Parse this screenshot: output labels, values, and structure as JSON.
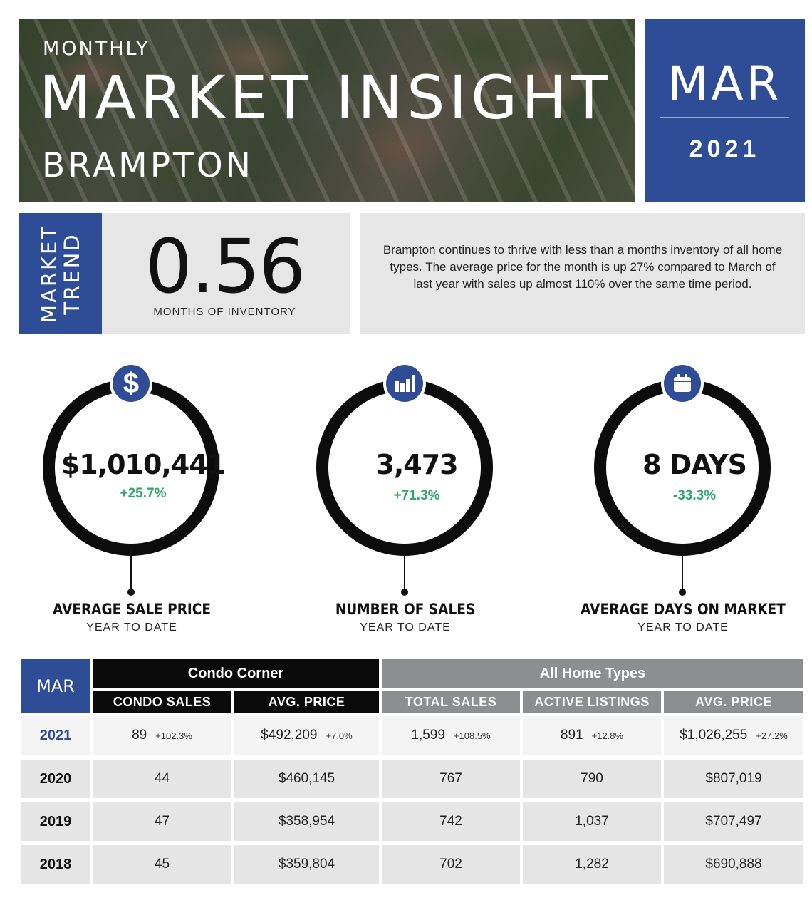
{
  "header": {
    "monthly": "MONTHLY",
    "title": "MARKET INSIGHT",
    "city": "BRAMPTON",
    "month": "MAR",
    "year": "2021"
  },
  "trend": {
    "tag_line1": "MARKET",
    "tag_line2": "TREND",
    "value": "0.56",
    "label": "MONTHS OF INVENTORY",
    "description": "Brampton continues to thrive with less than a months inventory of all home types.  The average price for the month is up 27% compared to March of last year with sales up almost 110% over the same time period."
  },
  "metrics": [
    {
      "icon": "dollar-icon",
      "value": "$1,010,441",
      "change": "+25.7%",
      "label": "AVERAGE SALE PRICE",
      "sub": "YEAR TO DATE"
    },
    {
      "icon": "bar-chart-icon",
      "value": "3,473",
      "change": "+71.3%",
      "label": "NUMBER OF SALES",
      "sub": "YEAR TO DATE"
    },
    {
      "icon": "calendar-icon",
      "value": "8 DAYS",
      "change": "-33.3%",
      "label": "AVERAGE DAYS ON MARKET",
      "sub": "YEAR TO DATE"
    }
  ],
  "colors": {
    "brand_blue": "#2f4d97",
    "positive_green": "#2ea868",
    "header_gray": "#8c8e8f"
  },
  "table": {
    "corner": "MAR",
    "group_condo": "Condo Corner",
    "group_all": "All Home Types",
    "headers": [
      "CONDO SALES",
      "AVG. PRICE",
      "TOTAL SALES",
      "ACTIVE LISTINGS",
      "AVG. PRICE"
    ],
    "rows": [
      {
        "year": "2021",
        "cells": [
          {
            "v": "89",
            "p": "+102.3%"
          },
          {
            "v": "$492,209",
            "p": "+7.0%"
          },
          {
            "v": "1,599",
            "p": "+108.5%"
          },
          {
            "v": "891",
            "p": "+12.8%"
          },
          {
            "v": "$1,026,255",
            "p": "+27.2%"
          }
        ]
      },
      {
        "year": "2020",
        "cells": [
          {
            "v": "44"
          },
          {
            "v": "$460,145"
          },
          {
            "v": "767"
          },
          {
            "v": "790"
          },
          {
            "v": "$807,019"
          }
        ]
      },
      {
        "year": "2019",
        "cells": [
          {
            "v": "47"
          },
          {
            "v": "$358,954"
          },
          {
            "v": "742"
          },
          {
            "v": "1,037"
          },
          {
            "v": "$707,497"
          }
        ]
      },
      {
        "year": "2018",
        "cells": [
          {
            "v": "45"
          },
          {
            "v": "$359,804"
          },
          {
            "v": "702"
          },
          {
            "v": "1,282"
          },
          {
            "v": "$690,888"
          }
        ]
      }
    ]
  }
}
